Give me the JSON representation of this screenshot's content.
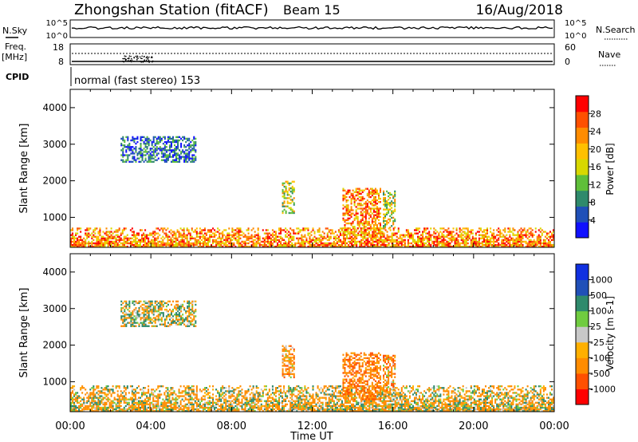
{
  "header": {
    "station": "Zhongshan Station (fitACF)",
    "beam": "Beam 15",
    "date": "16/Aug/2018"
  },
  "top_panels": {
    "nsky_label": "N.Sky",
    "nsearch_label": "N.Search",
    "noise_ticks": [
      "10^5",
      "10^0"
    ],
    "freq_label": "Freq.",
    "freq_unit": "[MHz]",
    "freq_ticks": [
      "18",
      "8"
    ],
    "nave_label": "Nave",
    "nave_ticks": [
      "60",
      "0"
    ],
    "cpid_label": "CPID",
    "cpid_text": "normal (fast stereo) 153"
  },
  "colors": {
    "power_scale": [
      "#1010ff",
      "#2050b8",
      "#2f8a6c",
      "#5fbf3a",
      "#d8d800",
      "#ffc000",
      "#ff8c00",
      "#ff5000",
      "#ff0000"
    ],
    "velocity_scale": [
      "#ff0000",
      "#ff5000",
      "#ff8c00",
      "#ffb000",
      "#c8c8c8",
      "#70cc40",
      "#2f8a6c",
      "#2050b8",
      "#1030e0"
    ]
  },
  "chart_data": [
    {
      "type": "heatmap",
      "title": "",
      "xlabel": "Time UT",
      "ylabel": "Slant Range [km]",
      "xlim": [
        0,
        24
      ],
      "ylim": [
        180,
        4500
      ],
      "x_tick_labels": [
        "00:00",
        "04:00",
        "08:00",
        "12:00",
        "16:00",
        "20:00",
        "00:00"
      ],
      "y_ticks": [
        1000,
        2000,
        3000,
        4000
      ],
      "colorbar": {
        "label": "Power [dB]",
        "ticks": [
          "4",
          "8",
          "12",
          "16",
          "20",
          "24",
          "28"
        ],
        "range": [
          0,
          30
        ]
      },
      "regions": [
        {
          "t0": 0.0,
          "t1": 24.0,
          "r0": 180,
          "r1": 700,
          "level": "strong"
        },
        {
          "t0": 2.5,
          "t1": 6.2,
          "r0": 2500,
          "r1": 3200,
          "level": "weak"
        },
        {
          "t0": 10.5,
          "t1": 11.1,
          "r0": 1100,
          "r1": 2000,
          "level": "moderate"
        },
        {
          "t0": 13.5,
          "t1": 15.4,
          "r0": 500,
          "r1": 1800,
          "level": "strong"
        },
        {
          "t0": 15.5,
          "t1": 16.1,
          "r0": 700,
          "r1": 1700,
          "level": "moderate"
        }
      ]
    },
    {
      "type": "heatmap",
      "title": "",
      "xlabel": "Time UT",
      "ylabel": "Slant Range [km]",
      "xlim": [
        0,
        24
      ],
      "ylim": [
        180,
        4500
      ],
      "x_tick_labels": [
        "00:00",
        "04:00",
        "08:00",
        "12:00",
        "16:00",
        "20:00",
        "00:00"
      ],
      "y_ticks": [
        1000,
        2000,
        3000,
        4000
      ],
      "colorbar": {
        "label": "Velocity [m s-1]",
        "ticks": [
          "-1000",
          "-500",
          "-100",
          "-25",
          "25",
          "100",
          "500",
          "1000"
        ],
        "range": [
          -1200,
          1200
        ]
      },
      "regions": [
        {
          "t0": 0.0,
          "t1": 24.0,
          "r0": 180,
          "r1": 900,
          "velocity": -100
        },
        {
          "t0": 2.5,
          "t1": 6.2,
          "r0": 2500,
          "r1": 3200,
          "velocity": 0
        },
        {
          "t0": 10.5,
          "t1": 11.1,
          "r0": 1100,
          "r1": 2000,
          "velocity": -300
        },
        {
          "t0": 13.5,
          "t1": 15.4,
          "r0": 500,
          "r1": 1800,
          "velocity": -400
        },
        {
          "t0": 15.5,
          "t1": 16.1,
          "r0": 700,
          "r1": 1700,
          "velocity": -300
        }
      ]
    }
  ]
}
